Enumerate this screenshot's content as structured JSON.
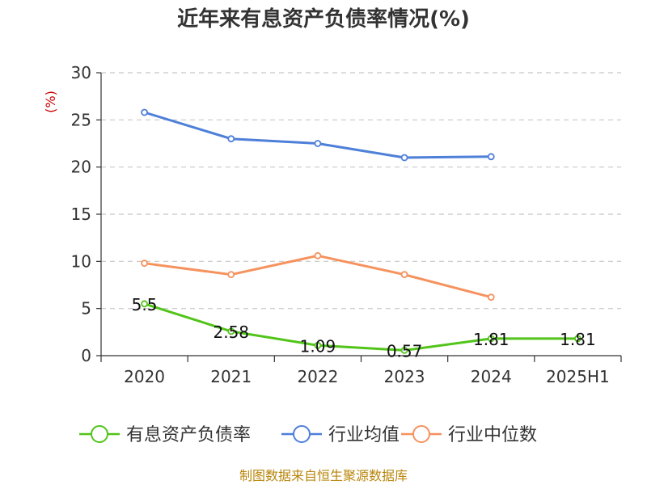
{
  "chart_data": {
    "type": "line",
    "title": "近年来有息资产负债率情况(%)",
    "ylabel": "(%)",
    "xlabel": "",
    "categories": [
      "2020",
      "2021",
      "2022",
      "2023",
      "2024",
      "2025H1"
    ],
    "ylim": [
      0,
      30
    ],
    "yticks": [
      "0",
      "5",
      "10",
      "15",
      "20",
      "25",
      "30"
    ],
    "grid": true,
    "legend_position": "bottom",
    "series": [
      {
        "name": "有息资产负债率",
        "color": "#52c41a",
        "values": [
          5.5,
          2.58,
          1.09,
          0.57,
          1.81,
          1.81
        ],
        "labels": [
          "5.5",
          "2.58",
          "1.09",
          "0.57",
          "1.81",
          "1.81"
        ]
      },
      {
        "name": "行业均值",
        "color": "#4e7fd9",
        "values": [
          25.8,
          23.0,
          22.5,
          21.0,
          21.1,
          null
        ]
      },
      {
        "name": "行业中位数",
        "color": "#f5925e",
        "values": [
          9.8,
          8.6,
          10.6,
          8.6,
          6.2,
          null
        ]
      }
    ]
  },
  "source": "制图数据来自恒生聚源数据库"
}
